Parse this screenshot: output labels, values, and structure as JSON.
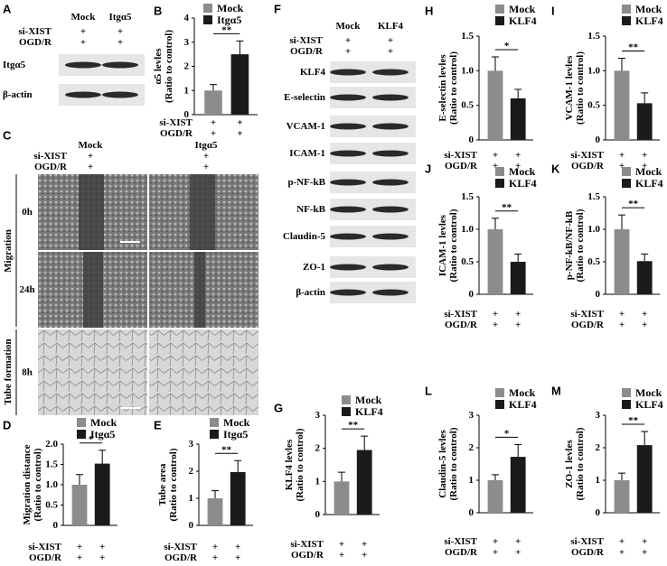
{
  "blots": [
    {
      "panel": "A",
      "columns": [
        "Mock",
        "Itgα5"
      ],
      "conditions": [
        {
          "label": "si-XIST",
          "marks": [
            "+",
            "+"
          ]
        },
        {
          "label": "OGD/R",
          "marks": [
            "+",
            "+"
          ]
        }
      ],
      "bands": [
        "Itgα5",
        "β-actin"
      ]
    },
    {
      "panel": "F",
      "columns": [
        "Mock",
        "KLF4"
      ],
      "conditions": [
        {
          "label": "si-XIST",
          "marks": [
            "+",
            "+"
          ]
        },
        {
          "label": "OGD/R",
          "marks": [
            "+",
            "+"
          ]
        }
      ],
      "bands": [
        "KLF4",
        "E-selectin",
        "VCAM-1",
        "ICAM-1",
        "p-NF-kB",
        "NF-kB",
        "Claudin-5",
        "ZO-1",
        "β-actin"
      ]
    }
  ],
  "images": {
    "panel": "C",
    "columns": [
      "Mock",
      "Itgα5"
    ],
    "conditions": [
      {
        "label": "si-XIST",
        "marks": [
          "+",
          "+"
        ]
      },
      {
        "label": "OGD/R",
        "marks": [
          "+",
          "+"
        ]
      }
    ],
    "sections": [
      "Migration",
      "Tube formation"
    ],
    "times": [
      "0h",
      "24h",
      "8h"
    ]
  },
  "chart_data": [
    {
      "type": "bar",
      "panel": "B",
      "ylabel": [
        "α5 levles",
        "(Ratio to control)"
      ],
      "ylim": [
        0,
        4
      ],
      "yticks": [
        0,
        1,
        2,
        3,
        4
      ],
      "series": [
        {
          "name": "Mock",
          "color": "#8c8c8c",
          "values": [
            1.0
          ],
          "errors": [
            0.25
          ]
        },
        {
          "name": "Itgα5",
          "color": "#1a1a1a",
          "values": [
            2.5
          ],
          "errors": [
            0.55
          ]
        }
      ],
      "significance": "**",
      "x_rows": [
        {
          "label": "si-XIST",
          "marks": [
            "+",
            "+"
          ]
        },
        {
          "label": "OGD/R",
          "marks": [
            "+",
            "+"
          ]
        }
      ]
    },
    {
      "type": "bar",
      "panel": "D",
      "ylabel": [
        "Migration distance",
        "(Ratio to control)"
      ],
      "ylim": [
        0,
        2
      ],
      "yticks": [
        0,
        0.5,
        {
          "value": 1,
          "label": "1.0"
        },
        1.5,
        {
          "value": 2,
          "label": "2.0"
        }
      ],
      "series": [
        {
          "name": "Mock",
          "color": "#8c8c8c",
          "values": [
            1.0
          ],
          "errors": [
            0.25
          ]
        },
        {
          "name": "Itgα5",
          "color": "#1a1a1a",
          "values": [
            1.52
          ],
          "errors": [
            0.33
          ]
        }
      ],
      "significance": "*",
      "x_rows": [
        {
          "label": "si-XIST",
          "marks": [
            "+",
            "+"
          ]
        },
        {
          "label": "OGD/R",
          "marks": [
            "+",
            "+"
          ]
        }
      ]
    },
    {
      "type": "bar",
      "panel": "E",
      "ylabel": [
        "Tube area",
        "(Ratio to control)"
      ],
      "ylim": [
        0,
        3
      ],
      "yticks": [
        0,
        1,
        2,
        3
      ],
      "series": [
        {
          "name": "Mock",
          "color": "#8c8c8c",
          "values": [
            1.0
          ],
          "errors": [
            0.28
          ]
        },
        {
          "name": "Itgα5",
          "color": "#1a1a1a",
          "values": [
            1.97
          ],
          "errors": [
            0.42
          ]
        }
      ],
      "significance": "**",
      "x_rows": [
        {
          "label": "si-XIST",
          "marks": [
            "+",
            "+"
          ]
        },
        {
          "label": "OGD/R",
          "marks": [
            "+",
            "+"
          ]
        }
      ]
    },
    {
      "type": "bar",
      "panel": "G",
      "ylabel": [
        "KLF4 levles",
        "(Ratio to control)"
      ],
      "ylim": [
        0,
        3
      ],
      "yticks": [
        0,
        1,
        2,
        3
      ],
      "series": [
        {
          "name": "Mock",
          "color": "#8c8c8c",
          "values": [
            1.0
          ],
          "errors": [
            0.28
          ]
        },
        {
          "name": "KLF4",
          "color": "#1a1a1a",
          "values": [
            1.95
          ],
          "errors": [
            0.42
          ]
        }
      ],
      "significance": "**",
      "x_rows": [
        {
          "label": "si-XIST",
          "marks": [
            "+",
            "+"
          ]
        },
        {
          "label": "OGD/R",
          "marks": [
            "+",
            "+"
          ]
        }
      ]
    },
    {
      "type": "bar",
      "panel": "H",
      "ylabel": [
        "E-selectin levles",
        "(Ratio to control)"
      ],
      "ylim": [
        0,
        1.5
      ],
      "yticks": [
        0,
        0.5,
        {
          "value": 1,
          "label": "1.0"
        },
        1.5
      ],
      "series": [
        {
          "name": "Mock",
          "color": "#8c8c8c",
          "values": [
            1.0
          ],
          "errors": [
            0.2
          ]
        },
        {
          "name": "KLF4",
          "color": "#1a1a1a",
          "values": [
            0.6
          ],
          "errors": [
            0.13
          ]
        }
      ],
      "significance": "*",
      "x_rows": [
        {
          "label": "si-XIST",
          "marks": [
            "+",
            "+"
          ]
        },
        {
          "label": "OGD/R",
          "marks": [
            "+",
            "+"
          ]
        }
      ]
    },
    {
      "type": "bar",
      "panel": "I",
      "ylabel": [
        "VCAM-1 levles",
        "(Ratio to control)"
      ],
      "ylim": [
        0,
        1.5
      ],
      "yticks": [
        0,
        0.5,
        {
          "value": 1,
          "label": "1.0"
        },
        1.5
      ],
      "series": [
        {
          "name": "Mock",
          "color": "#8c8c8c",
          "values": [
            1.0
          ],
          "errors": [
            0.18
          ]
        },
        {
          "name": "KLF4",
          "color": "#1a1a1a",
          "values": [
            0.53
          ],
          "errors": [
            0.15
          ]
        }
      ],
      "significance": "**",
      "x_rows": [
        {
          "label": "si-XIST",
          "marks": [
            "+",
            "+"
          ]
        },
        {
          "label": "OGD/R",
          "marks": [
            "+",
            "+"
          ]
        }
      ]
    },
    {
      "type": "bar",
      "panel": "J",
      "ylabel": [
        "ICAM-1 levles",
        "(Ratio to control)"
      ],
      "ylim": [
        0,
        1.5
      ],
      "yticks": [
        0,
        0.5,
        {
          "value": 1,
          "label": "1.0"
        },
        1.5
      ],
      "series": [
        {
          "name": "Mock",
          "color": "#8c8c8c",
          "values": [
            1.0
          ],
          "errors": [
            0.17
          ]
        },
        {
          "name": "KLF4",
          "color": "#1a1a1a",
          "values": [
            0.5
          ],
          "errors": [
            0.12
          ]
        }
      ],
      "significance": "**",
      "x_rows": [
        {
          "label": "si-XIST",
          "marks": [
            "+",
            "+"
          ]
        },
        {
          "label": "OGD/R",
          "marks": [
            "+",
            "+"
          ]
        }
      ]
    },
    {
      "type": "bar",
      "panel": "K",
      "ylabel": [
        "p-NF-kB/NF-kB",
        "(Ratio to control)"
      ],
      "ylim": [
        0,
        1.5
      ],
      "yticks": [
        0,
        0.5,
        {
          "value": 1,
          "label": "1.0"
        },
        1.5
      ],
      "series": [
        {
          "name": "Mock",
          "color": "#8c8c8c",
          "values": [
            1.0
          ],
          "errors": [
            0.22
          ]
        },
        {
          "name": "KLF4",
          "color": "#1a1a1a",
          "values": [
            0.51
          ],
          "errors": [
            0.11
          ]
        }
      ],
      "significance": "**",
      "x_rows": [
        {
          "label": "si-XIST",
          "marks": [
            "+",
            "+"
          ]
        },
        {
          "label": "OGD/R",
          "marks": [
            "+",
            "+"
          ]
        }
      ]
    },
    {
      "type": "bar",
      "panel": "L",
      "ylabel": [
        "Claudin-5 levles",
        "(Ratio to control)"
      ],
      "ylim": [
        0,
        3
      ],
      "yticks": [
        0,
        1,
        2,
        3
      ],
      "series": [
        {
          "name": "Mock",
          "color": "#8c8c8c",
          "values": [
            1.0
          ],
          "errors": [
            0.17
          ]
        },
        {
          "name": "KLF4",
          "color": "#1a1a1a",
          "values": [
            1.72
          ],
          "errors": [
            0.38
          ]
        }
      ],
      "significance": "*",
      "x_rows": [
        {
          "label": "si-XIST",
          "marks": [
            "+",
            "+"
          ]
        },
        {
          "label": "OGD/R",
          "marks": [
            "+",
            "+"
          ]
        }
      ]
    },
    {
      "type": "bar",
      "panel": "M",
      "ylabel": [
        "ZO-1 levles",
        "(Ratio to control)"
      ],
      "ylim": [
        0,
        3
      ],
      "yticks": [
        0,
        1,
        2,
        3
      ],
      "series": [
        {
          "name": "Mock",
          "color": "#8c8c8c",
          "values": [
            1.0
          ],
          "errors": [
            0.22
          ]
        },
        {
          "name": "KLF4",
          "color": "#1a1a1a",
          "values": [
            2.08
          ],
          "errors": [
            0.42
          ]
        }
      ],
      "significance": "**",
      "x_rows": [
        {
          "label": "si-XIST",
          "marks": [
            "+",
            "+"
          ]
        },
        {
          "label": "OGD/R",
          "marks": [
            "+",
            "+"
          ]
        }
      ]
    }
  ]
}
